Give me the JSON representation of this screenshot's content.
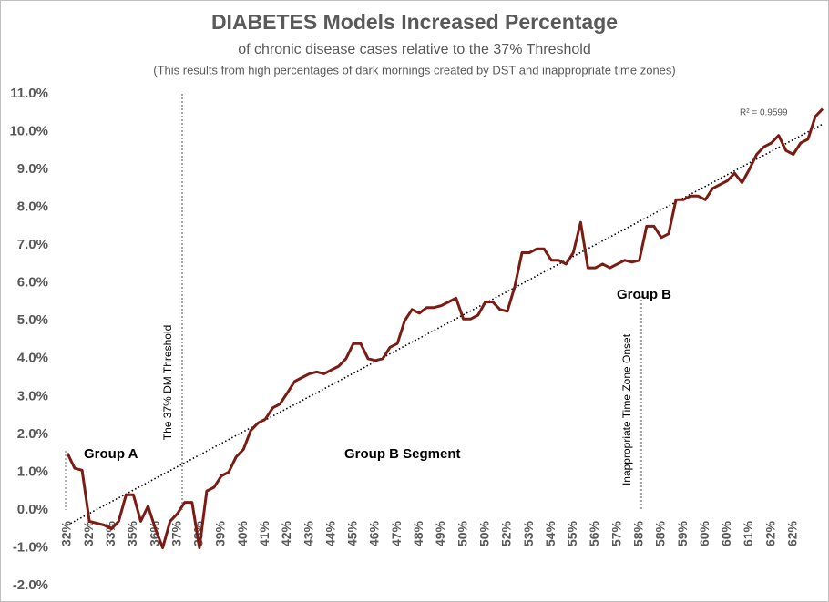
{
  "chart_data": {
    "type": "line",
    "title": "DIABETES Models Increased Percentage",
    "subtitle": "of chronic disease cases relative to the 37% Threshold",
    "note": "(This results from high percentages of dark mornings created by DST and inappropriate time zones)",
    "categories": [
      "32%",
      null,
      null,
      "32%",
      null,
      null,
      "33%",
      null,
      null,
      "35%",
      null,
      null,
      "36%",
      null,
      null,
      "37%",
      null,
      null,
      "38%",
      null,
      null,
      "39%",
      null,
      null,
      "40%",
      null,
      null,
      "41%",
      null,
      null,
      "42%",
      null,
      null,
      "43%",
      null,
      null,
      "44%",
      null,
      null,
      "45%",
      null,
      null,
      "46%",
      null,
      null,
      "47%",
      null,
      null,
      "48%",
      null,
      null,
      "49%",
      null,
      null,
      "50%",
      null,
      null,
      "50%",
      null,
      null,
      "52%",
      null,
      null,
      "53%",
      null,
      null,
      "54%",
      null,
      null,
      "55%",
      null,
      null,
      "56%",
      null,
      null,
      "57%",
      null,
      null,
      "58%",
      null,
      null,
      "58%",
      null,
      null,
      "59%",
      null,
      null,
      "60%",
      null,
      null,
      "60%",
      null,
      null,
      "61%",
      null,
      null,
      "62%",
      null,
      null,
      "62%",
      null,
      null,
      null,
      null
    ],
    "values": [
      1.5,
      1.1,
      1.05,
      -0.3,
      -0.35,
      -0.4,
      -0.5,
      -0.3,
      0.4,
      0.4,
      -0.3,
      0.1,
      -0.5,
      -1.0,
      -0.3,
      -0.1,
      0.2,
      0.2,
      -1.0,
      0.5,
      0.6,
      0.9,
      1.0,
      1.4,
      1.6,
      2.1,
      2.3,
      2.4,
      2.7,
      2.8,
      3.1,
      3.4,
      3.5,
      3.6,
      3.65,
      3.6,
      3.7,
      3.8,
      4.0,
      4.4,
      4.4,
      4.0,
      3.95,
      4.0,
      4.3,
      4.4,
      5.0,
      5.3,
      5.2,
      5.35,
      5.35,
      5.4,
      5.5,
      5.6,
      5.05,
      5.05,
      5.15,
      5.5,
      5.5,
      5.3,
      5.25,
      5.9,
      6.8,
      6.8,
      6.9,
      6.9,
      6.6,
      6.6,
      6.5,
      6.8,
      7.6,
      6.4,
      6.4,
      6.5,
      6.4,
      6.5,
      6.6,
      6.55,
      6.6,
      7.5,
      7.5,
      7.2,
      7.3,
      8.2,
      8.2,
      8.3,
      8.3,
      8.2,
      8.5,
      8.6,
      8.7,
      8.9,
      8.65,
      9.0,
      9.4,
      9.6,
      9.7,
      9.9,
      9.5,
      9.4,
      9.7,
      9.8,
      10.4,
      10.6
    ],
    "color": "#7a1c14",
    "trendline": {
      "label": "R² = 0.9599",
      "start": -0.4,
      "end": 10.2
    },
    "ylim": [
      -2,
      11
    ],
    "yticks": [
      {
        "value": -2,
        "label": "-2.0%"
      },
      {
        "value": -1,
        "label": "-1.0%"
      },
      {
        "value": 0,
        "label": "0.0%"
      },
      {
        "value": 1,
        "label": "1.0%"
      },
      {
        "value": 2,
        "label": "2.0%"
      },
      {
        "value": 3,
        "label": "3.0%"
      },
      {
        "value": 4,
        "label": "4.0%"
      },
      {
        "value": 5,
        "label": "5.0%"
      },
      {
        "value": 6,
        "label": "6.0%"
      },
      {
        "value": 7,
        "label": "7.0%"
      },
      {
        "value": 8,
        "label": "8.0%"
      },
      {
        "value": 9,
        "label": "9.0%"
      },
      {
        "value": 10,
        "label": "10.0%"
      },
      {
        "value": 11,
        "label": "11.0%"
      }
    ],
    "grid": false,
    "annotations": [
      "Group A",
      "The 37% DM Threshold",
      "Group B Segment",
      "Inappropriate Time Zone Onset",
      "Group B"
    ]
  }
}
